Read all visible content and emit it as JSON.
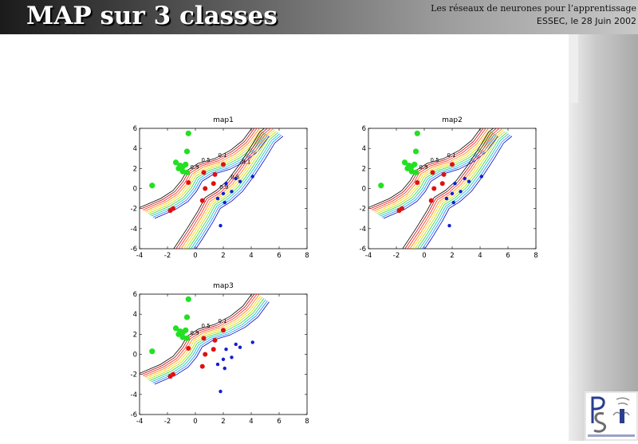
{
  "slide": {
    "title": "MAP sur 3 classes",
    "subtitle_line1": "Les réseaux de neurones pour  l’apprentissage",
    "subtitle_line2": "ESSEC, le 28 Juin 2002"
  },
  "colors": {
    "class1": "#22e022",
    "class2": "#e01010",
    "class3": "#1020d0",
    "header_dark": "#1b1b1b"
  },
  "chart_data": [
    {
      "type": "scatter",
      "title": "map1",
      "xlim": [
        -4,
        8
      ],
      "ylim": [
        -6,
        6
      ],
      "xticks": [
        -4,
        -2,
        0,
        2,
        4,
        6,
        8
      ],
      "yticks": [
        -6,
        -4,
        -2,
        0,
        2,
        4,
        6
      ],
      "series": [
        {
          "points": [
            [
              -0.5,
              5.5
            ],
            [
              -0.6,
              3.7
            ],
            [
              -1.4,
              2.6
            ],
            [
              -1.1,
              2.3
            ],
            [
              -0.9,
              2.2
            ],
            [
              -0.7,
              2.4
            ],
            [
              -1.2,
              2.0
            ],
            [
              -0.9,
              1.7
            ],
            [
              -0.6,
              1.6
            ],
            [
              -3.1,
              0.3
            ]
          ]
        },
        {
          "points": [
            [
              -0.5,
              0.6
            ],
            [
              0.6,
              1.6
            ],
            [
              1.3,
              0.5
            ],
            [
              2.0,
              2.4
            ],
            [
              1.4,
              1.4
            ],
            [
              0.7,
              0.0
            ],
            [
              -1.6,
              -2.0
            ],
            [
              -1.8,
              -2.2
            ],
            [
              0.5,
              -1.2
            ]
          ]
        },
        {
          "points": [
            [
              2.2,
              0.5
            ],
            [
              2.9,
              1.0
            ],
            [
              3.2,
              0.7
            ],
            [
              4.1,
              1.2
            ],
            [
              2.6,
              -0.3
            ],
            [
              2.0,
              -0.5
            ],
            [
              1.6,
              -1.0
            ],
            [
              2.1,
              -1.4
            ],
            [
              1.8,
              -3.7
            ]
          ]
        }
      ],
      "annotations": [
        "0.9",
        "0.5",
        "0.1",
        "0.9",
        "0.5",
        "0.1"
      ]
    },
    {
      "type": "scatter",
      "title": "map2",
      "xlim": [
        -4,
        8
      ],
      "ylim": [
        -6,
        6
      ],
      "xticks": [
        -4,
        -2,
        0,
        2,
        4,
        6,
        8
      ],
      "yticks": [
        -6,
        -4,
        -2,
        0,
        2,
        4,
        6
      ],
      "series": [
        {
          "points": [
            [
              -0.5,
              5.5
            ],
            [
              -0.6,
              3.7
            ],
            [
              -1.4,
              2.6
            ],
            [
              -1.1,
              2.3
            ],
            [
              -0.9,
              2.2
            ],
            [
              -0.7,
              2.4
            ],
            [
              -1.2,
              2.0
            ],
            [
              -0.9,
              1.7
            ],
            [
              -0.6,
              1.6
            ],
            [
              -3.1,
              0.3
            ]
          ]
        },
        {
          "points": [
            [
              -0.5,
              0.6
            ],
            [
              0.6,
              1.6
            ],
            [
              1.3,
              0.5
            ],
            [
              2.0,
              2.4
            ],
            [
              1.4,
              1.4
            ],
            [
              0.7,
              0.0
            ],
            [
              -1.6,
              -2.0
            ],
            [
              -1.8,
              -2.2
            ],
            [
              0.5,
              -1.2
            ]
          ]
        },
        {
          "points": [
            [
              2.2,
              0.5
            ],
            [
              2.9,
              1.0
            ],
            [
              3.2,
              0.7
            ],
            [
              4.1,
              1.2
            ],
            [
              2.6,
              -0.3
            ],
            [
              2.0,
              -0.5
            ],
            [
              1.6,
              -1.0
            ],
            [
              2.1,
              -1.4
            ],
            [
              1.8,
              -3.7
            ]
          ]
        }
      ],
      "annotations": [
        "0.9",
        "0.5",
        "0.1"
      ]
    },
    {
      "type": "scatter",
      "title": "map3",
      "xlim": [
        -4,
        8
      ],
      "ylim": [
        -6,
        6
      ],
      "xticks": [
        -4,
        -2,
        0,
        2,
        4,
        6,
        8
      ],
      "yticks": [
        -6,
        -4,
        -2,
        0,
        2,
        4,
        6
      ],
      "series": [
        {
          "points": [
            [
              -0.5,
              5.5
            ],
            [
              -0.6,
              3.7
            ],
            [
              -1.4,
              2.6
            ],
            [
              -1.1,
              2.3
            ],
            [
              -0.9,
              2.2
            ],
            [
              -0.7,
              2.4
            ],
            [
              -1.2,
              2.0
            ],
            [
              -0.9,
              1.7
            ],
            [
              -0.6,
              1.6
            ],
            [
              -3.1,
              0.3
            ]
          ]
        },
        {
          "points": [
            [
              -0.5,
              0.6
            ],
            [
              0.6,
              1.6
            ],
            [
              1.3,
              0.5
            ],
            [
              2.0,
              2.4
            ],
            [
              1.4,
              1.4
            ],
            [
              0.7,
              0.0
            ],
            [
              -1.6,
              -2.0
            ],
            [
              -1.8,
              -2.2
            ],
            [
              0.5,
              -1.2
            ]
          ]
        },
        {
          "points": [
            [
              2.2,
              0.5
            ],
            [
              2.9,
              1.0
            ],
            [
              3.2,
              0.7
            ],
            [
              4.1,
              1.2
            ],
            [
              2.6,
              -0.3
            ],
            [
              2.0,
              -0.5
            ],
            [
              1.6,
              -1.0
            ],
            [
              2.1,
              -1.4
            ],
            [
              1.8,
              -3.7
            ]
          ]
        }
      ],
      "annotations": [
        "0.9",
        "0.5",
        "0.1"
      ]
    }
  ]
}
